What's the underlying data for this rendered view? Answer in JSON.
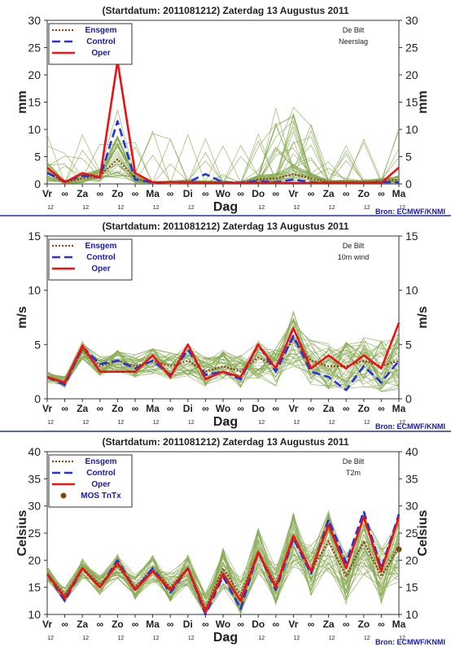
{
  "source": "Bron: ECMWF/KNMI",
  "colors": {
    "ensgem": "#8B4513",
    "control": "#2233dd",
    "oper": "#ee1111",
    "members": "#88aa55",
    "mos": "#7a4a10",
    "legend_text": "#1a1aaa",
    "divider": "#2233aa"
  },
  "time_axis": {
    "xlabel": "Dag",
    "labels": [
      "Vr",
      "∞",
      "Za",
      "∞",
      "Zo",
      "∞",
      "Ma",
      "∞",
      "Di",
      "∞",
      "Wo",
      "∞",
      "Do",
      "∞",
      "Vr",
      "∞",
      "Za",
      "∞",
      "Zo",
      "∞",
      "Ma"
    ],
    "hours": [
      "12",
      "12",
      "12",
      "12",
      "12",
      "12",
      "12",
      "12",
      "12",
      "12",
      "12"
    ]
  },
  "charts": [
    {
      "title": "(Startdatum: 2011081212)   Zaterdag  13 Augustus  2011",
      "station": "De Bilt",
      "variable": "Neerslag",
      "ylabel": "mm",
      "legend": [
        "Ensgem",
        "Control",
        "Oper"
      ]
    },
    {
      "title": "(Startdatum: 2011081212)   Zaterdag  13 Augustus  2011",
      "station": "De Bilt",
      "variable": "10m wind",
      "ylabel": "m/s",
      "legend": [
        "Ensgem",
        "Control",
        "Oper"
      ]
    },
    {
      "title": "(Startdatum: 2011081212)   Zaterdag  13 Augustus  2011",
      "station": "De Bilt",
      "variable": "T2m",
      "ylabel": "Celsius",
      "legend": [
        "Ensgem",
        "Control",
        "Oper",
        "MOS TnTx"
      ]
    }
  ],
  "chart_data": [
    {
      "type": "line",
      "x_unit": "forecast day (0 = Vr 12UTC)",
      "x": [
        0,
        0.5,
        1,
        1.5,
        2,
        2.5,
        3,
        3.5,
        4,
        4.5,
        5,
        5.5,
        6,
        6.5,
        7,
        7.5,
        8,
        8.5,
        9,
        9.5,
        10
      ],
      "ylim": [
        0,
        30
      ],
      "yticks": [
        0,
        5,
        10,
        15,
        20,
        25,
        30
      ],
      "series": [
        {
          "name": "Ensgem",
          "values": [
            2,
            0.3,
            1,
            1.5,
            4.5,
            1,
            0.2,
            0.3,
            0.4,
            0.3,
            0.3,
            0.2,
            0.8,
            1,
            1.8,
            1,
            0.4,
            0.4,
            0.4,
            0.5,
            0.8
          ]
        },
        {
          "name": "Control",
          "values": [
            2,
            0.5,
            1.5,
            1.2,
            11.5,
            0.8,
            0.3,
            0.3,
            0.3,
            1.8,
            0.3,
            0.3,
            0.5,
            0.3,
            0.8,
            0.3,
            0.2,
            0.2,
            0.2,
            0.3,
            0.3
          ]
        },
        {
          "name": "Oper",
          "values": [
            3,
            0.3,
            2,
            1.2,
            22.5,
            2,
            0.3,
            0.3,
            0.3,
            0.2,
            0.2,
            0.2,
            0.2,
            0.2,
            0.2,
            0.2,
            0.2,
            0.2,
            0.2,
            0.2,
            3
          ]
        }
      ]
    },
    {
      "type": "line",
      "x_unit": "forecast day (0 = Vr 12UTC)",
      "x": [
        0,
        0.5,
        1,
        1.5,
        2,
        2.5,
        3,
        3.5,
        4,
        4.5,
        5,
        5.5,
        6,
        6.5,
        7,
        7.5,
        8,
        8.5,
        9,
        9.5,
        10
      ],
      "ylim": [
        0,
        15
      ],
      "yticks": [
        0,
        5,
        10,
        15
      ],
      "series": [
        {
          "name": "Ensgem",
          "values": [
            2,
            1.5,
            4.5,
            3,
            3.5,
            3,
            3.5,
            3,
            3.5,
            2.5,
            3,
            2.5,
            3.8,
            3,
            5.5,
            3.5,
            3,
            3,
            3.5,
            3,
            3.5
          ]
        },
        {
          "name": "Control",
          "values": [
            2,
            1.3,
            4.8,
            3.2,
            3.5,
            2.8,
            3.5,
            2.2,
            4.5,
            2.2,
            2.5,
            1.8,
            5,
            2.5,
            5.8,
            2.5,
            2,
            0.8,
            3,
            1.5,
            3.5
          ]
        },
        {
          "name": "Oper",
          "values": [
            2,
            1.5,
            4.9,
            2.5,
            2.5,
            2.5,
            4,
            2,
            5,
            1.8,
            2.5,
            2,
            5,
            2.8,
            6.5,
            2.8,
            4,
            2.8,
            4,
            2.8,
            7
          ]
        }
      ]
    },
    {
      "type": "line",
      "x_unit": "forecast day (0 = Vr 12UTC)",
      "x": [
        0,
        0.5,
        1,
        1.5,
        2,
        2.5,
        3,
        3.5,
        4,
        4.5,
        5,
        5.5,
        6,
        6.5,
        7,
        7.5,
        8,
        8.5,
        9,
        9.5,
        10
      ],
      "ylim": [
        10,
        40
      ],
      "yticks": [
        10,
        15,
        20,
        25,
        30,
        35,
        40
      ],
      "series": [
        {
          "name": "Ensgem",
          "values": [
            17.5,
            13.5,
            18.5,
            15.5,
            19,
            15,
            18.5,
            15,
            18.5,
            11,
            18.5,
            13.5,
            21.5,
            15.5,
            24,
            18,
            23.5,
            17,
            23.5,
            17,
            22.5
          ]
        },
        {
          "name": "Control",
          "values": [
            17.5,
            12.5,
            18.5,
            15,
            20,
            14.5,
            18.5,
            14,
            18.5,
            10,
            17,
            11,
            21.5,
            14.5,
            24,
            17.5,
            27.5,
            19.5,
            29,
            18.5,
            28.5
          ]
        },
        {
          "name": "Oper",
          "values": [
            17.5,
            13,
            18.5,
            15,
            19.5,
            14.5,
            18,
            14.5,
            18.5,
            10.5,
            17.5,
            12.5,
            21.5,
            15,
            24.5,
            18,
            26.5,
            18.5,
            28,
            18,
            28
          ]
        },
        {
          "name": "MOS TnTx",
          "values": [
            null,
            null,
            null,
            null,
            null,
            null,
            null,
            null,
            null,
            null,
            null,
            null,
            null,
            null,
            null,
            null,
            null,
            null,
            null,
            null,
            22
          ]
        }
      ]
    }
  ]
}
